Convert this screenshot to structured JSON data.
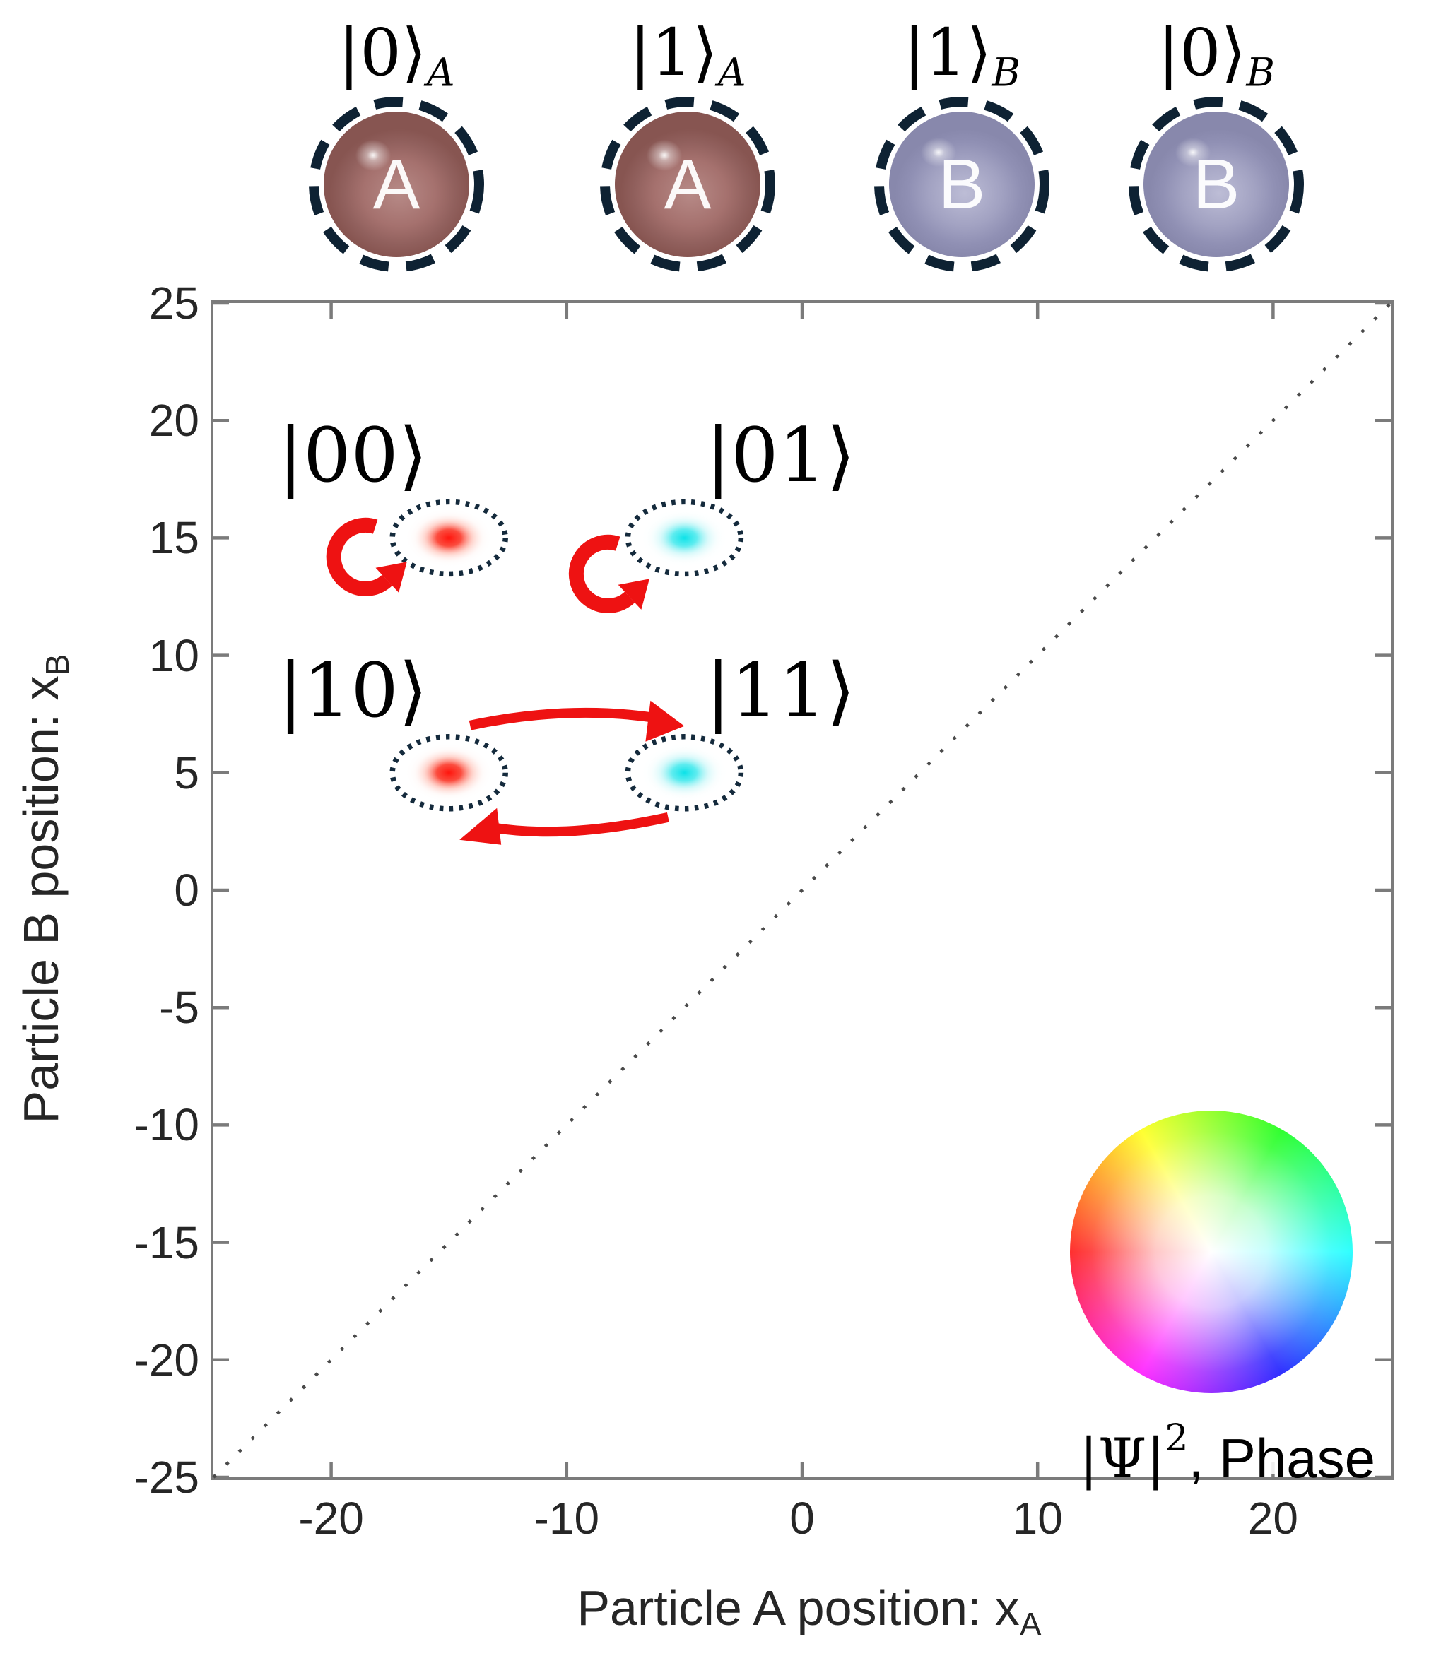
{
  "figure": {
    "top_particles": [
      {
        "ket": "|0⟩",
        "subscript": "A",
        "ball_letter": "A",
        "ball_color": "rose"
      },
      {
        "ket": "|1⟩",
        "subscript": "A",
        "ball_letter": "A",
        "ball_color": "rose"
      },
      {
        "ket": "|1⟩",
        "subscript": "B",
        "ball_letter": "B",
        "ball_color": "lavender"
      },
      {
        "ket": "|0⟩",
        "subscript": "B",
        "ball_letter": "B",
        "ball_color": "lavender"
      }
    ],
    "x_axis": {
      "label": "Particle A position: x",
      "label_subscript": "A"
    },
    "y_axis": {
      "label": "Particle B position: x",
      "label_subscript": "B"
    },
    "legend": {
      "psi": "|Ψ|",
      "sup": "2",
      "suffix": ", Phase"
    }
  },
  "colors": {
    "axis_frame": "#7b7b7b",
    "tick_text": "#262626",
    "diagonal_dots": "#4a4a4a",
    "arrow_red": "#ee1212",
    "blob_red": "#ff150d",
    "blob_cyan": "#0ce2e8",
    "dotted_ellipse": "#142a3c",
    "dashed_ring": "#0e2233",
    "ball_rose": "#a5716e",
    "ball_lavender": "#9d9dbe"
  },
  "chart_data": {
    "type": "scatter",
    "title": "",
    "xlabel": "Particle A position: x_A",
    "ylabel": "Particle B position: x_B",
    "xlim": [
      -25,
      25
    ],
    "ylim": [
      -25,
      25
    ],
    "x_ticks": [
      -20,
      -10,
      0,
      10,
      20
    ],
    "y_ticks": [
      25,
      20,
      15,
      10,
      5,
      0,
      -5,
      -10,
      -15,
      -20,
      -25
    ],
    "grid": false,
    "box": true,
    "diagonal_line": {
      "from": [
        -25,
        -25
      ],
      "to": [
        25,
        25
      ],
      "style": "dotted",
      "meaning": "x_A = x_B"
    },
    "points": [
      {
        "state": "|00⟩",
        "x": -15,
        "y": 15,
        "phase_color": "red",
        "self_rotation_arrow": true
      },
      {
        "state": "|01⟩",
        "x": -5,
        "y": 15,
        "phase_color": "cyan",
        "self_rotation_arrow": true
      },
      {
        "state": "|10⟩",
        "x": -15,
        "y": 5,
        "phase_color": "red",
        "self_rotation_arrow": false
      },
      {
        "state": "|11⟩",
        "x": -5,
        "y": 5,
        "phase_color": "cyan",
        "self_rotation_arrow": false
      }
    ],
    "exchange_arrows": {
      "between": [
        "|10⟩",
        "|11⟩"
      ],
      "direction": "bidirectional",
      "color": "red"
    },
    "colorwheel_legend": {
      "center": [
        17,
        -15.5
      ],
      "radius_units": 6,
      "label": "|Ψ|², Phase",
      "hue_meaning": "phase",
      "radius_meaning": "|Ψ|²",
      "left_hue": "red",
      "right_hue": "cyan",
      "top_hue": "green",
      "bottom_hue": "magenta"
    }
  }
}
